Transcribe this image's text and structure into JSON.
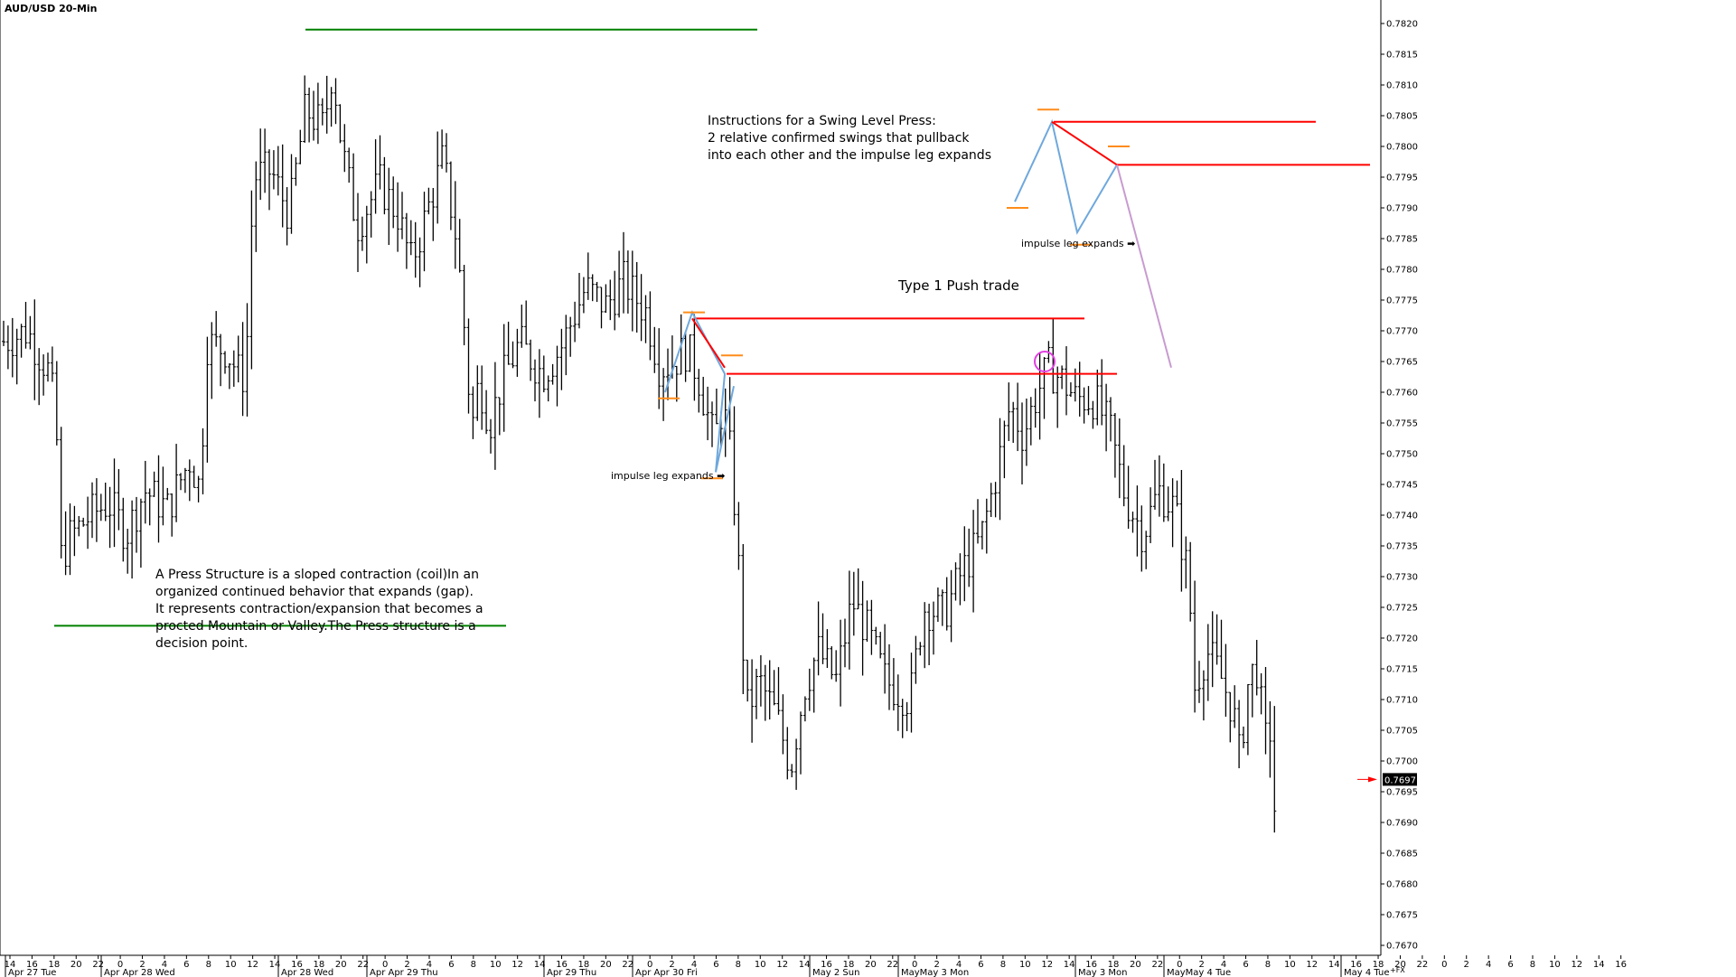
{
  "chart_data": {
    "type": "ohlc",
    "title": "AUD/USD 20-Min",
    "price_scale": {
      "min": 0.767,
      "max": 0.782,
      "step": 0.0005,
      "labels": [
        "0.7820",
        "0.7815",
        "0.7810",
        "0.7805",
        "0.7800",
        "0.7795",
        "0.7790",
        "0.7785",
        "0.7780",
        "0.7775",
        "0.7770",
        "0.7765",
        "0.7760",
        "0.7755",
        "0.7750",
        "0.7745",
        "0.7740",
        "0.7735",
        "0.7730",
        "0.7725",
        "0.7720",
        "0.7715",
        "0.7710",
        "0.7705",
        "0.7700",
        "0.7695",
        "0.7690",
        "0.7685",
        "0.7680",
        "0.7675",
        "0.7670"
      ]
    },
    "last_price": "0.7697",
    "corner_label": "+FX",
    "time_axis": {
      "hour_labels": [
        "14",
        "16",
        "18",
        "20",
        "22",
        "0",
        "2",
        "4",
        "6",
        "8",
        "10",
        "12",
        "14",
        "16",
        "18",
        "20",
        "22",
        "0",
        "2",
        "4",
        "6",
        "8",
        "10",
        "12",
        "14",
        "16",
        "18",
        "20",
        "22",
        "0",
        "2",
        "4",
        "6",
        "8",
        "10",
        "12",
        "14",
        "16",
        "18",
        "20",
        "22",
        "0",
        "2",
        "4",
        "6",
        "8",
        "10",
        "12",
        "14",
        "16",
        "18",
        "20",
        "22",
        "0",
        "2",
        "4",
        "6",
        "8",
        "10",
        "12",
        "14",
        "16",
        "18",
        "20",
        "22",
        "0",
        "2",
        "4",
        "6",
        "8",
        "10",
        "12",
        "14",
        "16"
      ],
      "date_labels": [
        "Apr 27 Tue",
        "Apr Apr 28 Wed",
        "Apr 28 Wed",
        "Apr Apr 29 Thu",
        "Apr 29 Thu",
        "Apr Apr 30 Fri",
        "May 2 Sun",
        "MayMay 3 Mon",
        "May 3 Mon",
        "MayMay 4 Tue",
        "May 4 Tue"
      ]
    },
    "price_path": [
      [
        0,
        0.7768
      ],
      [
        30,
        0.777
      ],
      [
        55,
        0.7763
      ],
      [
        62,
        0.7755
      ],
      [
        68,
        0.7732
      ],
      [
        75,
        0.7736
      ],
      [
        100,
        0.774
      ],
      [
        120,
        0.7742
      ],
      [
        140,
        0.7737
      ],
      [
        160,
        0.7744
      ],
      [
        185,
        0.7741
      ],
      [
        210,
        0.7749
      ],
      [
        222,
        0.7744
      ],
      [
        228,
        0.7768
      ],
      [
        250,
        0.7767
      ],
      [
        268,
        0.7762
      ],
      [
        275,
        0.7771
      ],
      [
        280,
        0.7795
      ],
      [
        300,
        0.7796
      ],
      [
        320,
        0.7789
      ],
      [
        338,
        0.7806
      ],
      [
        358,
        0.7803
      ],
      [
        368,
        0.7813
      ],
      [
        378,
        0.78
      ],
      [
        395,
        0.7787
      ],
      [
        420,
        0.7794
      ],
      [
        440,
        0.7789
      ],
      [
        455,
        0.7781
      ],
      [
        470,
        0.7788
      ],
      [
        490,
        0.7798
      ],
      [
        505,
        0.7785
      ],
      [
        513,
        0.7772
      ],
      [
        522,
        0.7754
      ],
      [
        530,
        0.7762
      ],
      [
        542,
        0.7755
      ],
      [
        556,
        0.7762
      ],
      [
        575,
        0.7768
      ],
      [
        600,
        0.7763
      ],
      [
        620,
        0.7767
      ],
      [
        648,
        0.7777
      ],
      [
        670,
        0.7774
      ],
      [
        690,
        0.7778
      ],
      [
        715,
        0.7773
      ],
      [
        730,
        0.7764
      ],
      [
        745,
        0.7765
      ],
      [
        760,
        0.7767
      ],
      [
        772,
        0.7763
      ],
      [
        790,
        0.7752
      ],
      [
        800,
        0.7758
      ],
      [
        810,
        0.7748
      ],
      [
        818,
        0.773
      ],
      [
        826,
        0.7708
      ],
      [
        840,
        0.7713
      ],
      [
        860,
        0.7707
      ],
      [
        875,
        0.7699
      ],
      [
        890,
        0.7712
      ],
      [
        905,
        0.7718
      ],
      [
        925,
        0.7713
      ],
      [
        943,
        0.7726
      ],
      [
        960,
        0.7721
      ],
      [
        980,
        0.7713
      ],
      [
        1007,
        0.771
      ],
      [
        1022,
        0.7725
      ],
      [
        1045,
        0.7724
      ],
      [
        1065,
        0.7731
      ],
      [
        1085,
        0.7736
      ],
      [
        1100,
        0.7745
      ],
      [
        1118,
        0.7758
      ],
      [
        1132,
        0.7753
      ],
      [
        1148,
        0.776
      ],
      [
        1160,
        0.7764
      ],
      [
        1175,
        0.7762
      ],
      [
        1190,
        0.7759
      ],
      [
        1210,
        0.7759
      ],
      [
        1228,
        0.7754
      ],
      [
        1245,
        0.7743
      ],
      [
        1265,
        0.7737
      ],
      [
        1282,
        0.7744
      ],
      [
        1300,
        0.7741
      ],
      [
        1315,
        0.773
      ],
      [
        1322,
        0.7712
      ],
      [
        1335,
        0.7718
      ],
      [
        1350,
        0.7714
      ],
      [
        1365,
        0.7708
      ],
      [
        1372,
        0.77
      ],
      [
        1380,
        0.7712
      ],
      [
        1390,
        0.7716
      ],
      [
        1400,
        0.7703
      ],
      [
        1405,
        0.7706
      ],
      [
        1412,
        0.7688
      ],
      [
        1415,
        0.7688
      ]
    ],
    "series": [
      {
        "name": "AUD/USD",
        "style": "ohlc-bars",
        "color": "#000000"
      }
    ],
    "annotations": {
      "horizontal_lines": [
        {
          "color": "#008000",
          "price": 0.7819,
          "x_from": 338,
          "x_to": 838
        },
        {
          "color": "#008000",
          "price": 0.7722,
          "x_from": 60,
          "x_to": 560
        },
        {
          "color": "#ff0000",
          "price": 0.7772,
          "x_from": 768,
          "x_to": 1200
        },
        {
          "color": "#ff0000",
          "price": 0.7763,
          "x_from": 804,
          "x_to": 1236
        },
        {
          "color": "#ff0000",
          "price": 0.7804,
          "x_from": 1166,
          "x_to": 1456
        },
        {
          "color": "#ff0000",
          "price": 0.7797,
          "x_from": 1236,
          "x_to": 1516
        }
      ],
      "orange_markers": [
        [
          768,
          0.7773
        ],
        [
          740,
          0.7759
        ],
        [
          810,
          0.7766
        ],
        [
          788,
          0.7746
        ],
        [
          1160,
          0.7806
        ],
        [
          1126,
          0.779
        ],
        [
          1196,
          0.7784
        ],
        [
          1238,
          0.78
        ]
      ],
      "swing_paths": [
        {
          "color": "#6fa8dc",
          "points": [
            [
              736,
              0.776
            ],
            [
              766,
              0.7773
            ],
            [
              802,
              0.7763
            ],
            [
              792,
              0.7747
            ],
            [
              812,
              0.7761
            ]
          ]
        },
        {
          "color": "#ff0000",
          "points": [
            [
              766,
              0.7772
            ],
            [
              802,
              0.7764
            ]
          ]
        },
        {
          "color": "#6fa8dc",
          "points": [
            [
              1123,
              0.7791
            ],
            [
              1164,
              0.7804
            ],
            [
              1192,
              0.7786
            ],
            [
              1236,
              0.7797
            ]
          ]
        },
        {
          "color": "#ff0000",
          "points": [
            [
              1164,
              0.7804
            ],
            [
              1236,
              0.7797
            ]
          ]
        },
        {
          "color": "#c89bd0",
          "points": [
            [
              1236,
              0.7797
            ],
            [
              1296,
              0.7764
            ]
          ]
        }
      ],
      "circle": {
        "color": "#e040e0",
        "x": 1156,
        "price": 0.7765,
        "radius": 11
      }
    },
    "labels": {
      "impulse_1": "impulse leg expands ➡",
      "impulse_2": "impulse leg expands ➡",
      "push_trade": "Type 1 Push trade",
      "instructions": [
        "Instructions for a Swing Level Press:",
        "2 relative confirmed swings that pullback",
        "into each other and the impulse leg expands"
      ],
      "press_structure": [
        "A Press Structure is a sloped contraction (coil)In an",
        "organized continued behavior that expands (gap).",
        "It represents contraction/expansion that becomes a",
        "procted Mountain or Valley.The Press structure is a",
        "decision point."
      ]
    }
  }
}
